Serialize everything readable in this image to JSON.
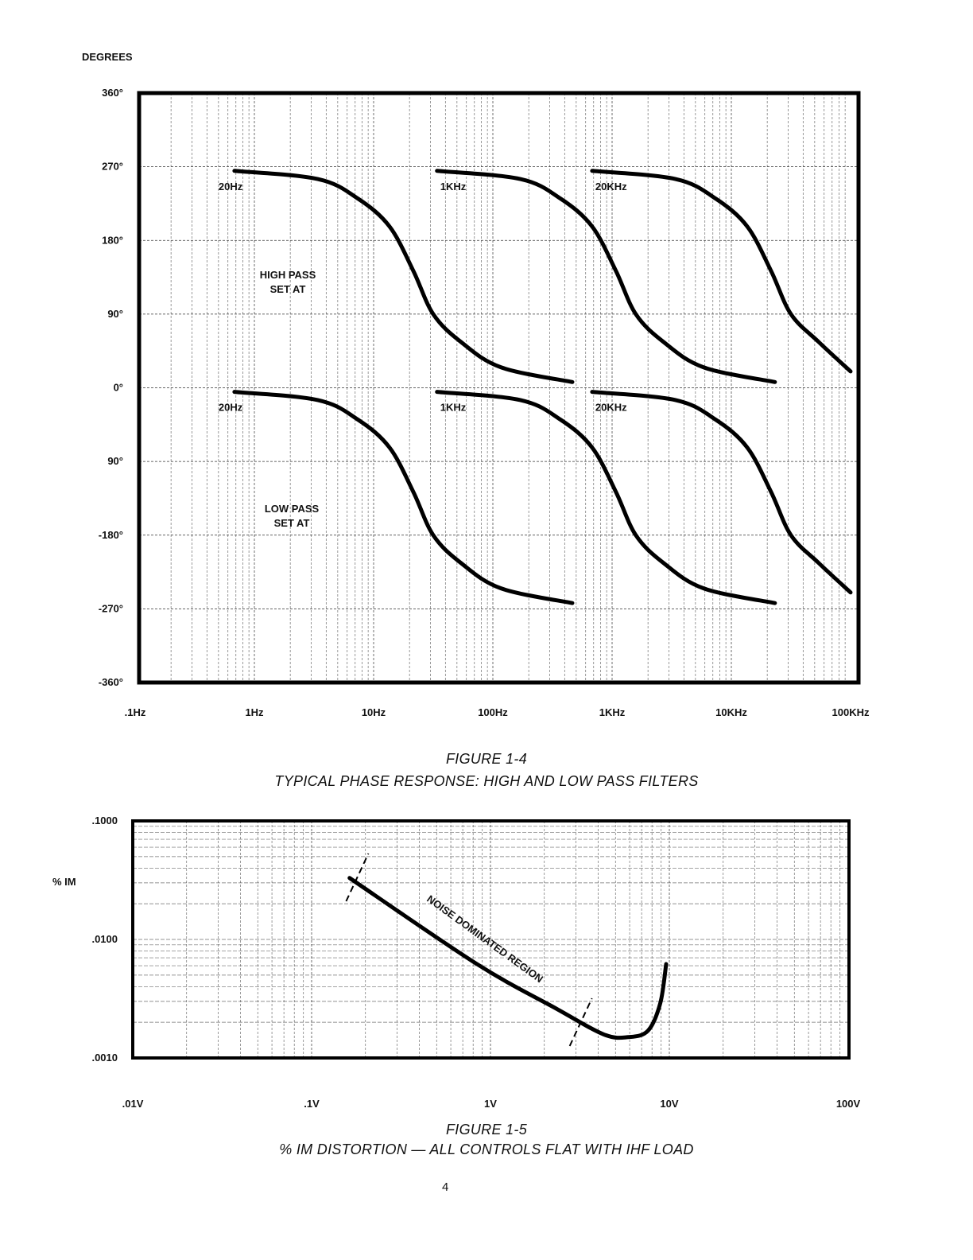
{
  "chart_data": [
    {
      "type": "line",
      "title": "FIGURE 1-4",
      "subtitle": "TYPICAL PHASE RESPONSE: HIGH AND LOW PASS FILTERS",
      "ylabel": "DEGREES",
      "xlabel": "",
      "xscale": "log",
      "xlim": [
        0.1,
        100000
      ],
      "ylim": [
        -360,
        360
      ],
      "grid": true,
      "xticks": [
        {
          "v": 0.1,
          "label": ".1Hz"
        },
        {
          "v": 1,
          "label": "1Hz"
        },
        {
          "v": 10,
          "label": "10Hz"
        },
        {
          "v": 100,
          "label": "100Hz"
        },
        {
          "v": 1000,
          "label": "1KHz"
        },
        {
          "v": 10000,
          "label": "10KHz"
        },
        {
          "v": 100000,
          "label": "100KHz"
        }
      ],
      "yticks": [
        {
          "v": 360,
          "label": "360°"
        },
        {
          "v": 270,
          "label": "270°"
        },
        {
          "v": 180,
          "label": "180°"
        },
        {
          "v": 90,
          "label": "90°"
        },
        {
          "v": 0,
          "label": "0°"
        },
        {
          "v": -90,
          "label": "90°"
        },
        {
          "v": -180,
          "label": "-180°"
        },
        {
          "v": -270,
          "label": "-270°"
        },
        {
          "v": -360,
          "label": "-360°"
        }
      ],
      "annotations": {
        "high_pass": [
          "HIGH PASS",
          "SET AT"
        ],
        "low_pass": [
          "LOW PASS",
          "SET AT"
        ]
      },
      "series": [
        {
          "name": "High pass 20Hz",
          "label": "20Hz",
          "x": [
            0.68,
            3.4,
            7.4,
            13.6,
            21.5,
            31.6,
            54,
            117,
            464
          ],
          "y": [
            265,
            255,
            231,
            197,
            143,
            90,
            56,
            25,
            7
          ]
        },
        {
          "name": "High pass 1KHz",
          "label": "1KHz",
          "x": [
            34,
            170,
            370,
            680,
            1075,
            1580,
            2700,
            5850,
            23200
          ],
          "y": [
            265,
            255,
            231,
            197,
            143,
            90,
            56,
            25,
            7
          ]
        },
        {
          "name": "High pass 20KHz",
          "label": "20KHz",
          "x": [
            680,
            3400,
            7400,
            13600,
            21500,
            31600,
            54000,
            100000
          ],
          "y": [
            265,
            255,
            231,
            197,
            143,
            90,
            56,
            20
          ]
        },
        {
          "name": "Low pass 20Hz",
          "label": "20Hz",
          "x": [
            0.68,
            3.4,
            7.4,
            13.6,
            21.5,
            31.6,
            54,
            117,
            464
          ],
          "y": [
            -5,
            -15,
            -39,
            -73,
            -127,
            -180,
            -214,
            -245,
            -263
          ]
        },
        {
          "name": "Low pass 1KHz",
          "label": "1KHz",
          "x": [
            34,
            170,
            370,
            680,
            1075,
            1580,
            2700,
            5850,
            23200
          ],
          "y": [
            -5,
            -15,
            -39,
            -73,
            -127,
            -180,
            -214,
            -245,
            -263
          ]
        },
        {
          "name": "Low pass 20KHz",
          "label": "20KHz",
          "x": [
            680,
            3400,
            7400,
            13600,
            21500,
            31600,
            54000,
            100000
          ],
          "y": [
            -5,
            -15,
            -39,
            -73,
            -127,
            -180,
            -214,
            -250
          ]
        }
      ]
    },
    {
      "type": "line",
      "title": "FIGURE 1-5",
      "subtitle": "% IM DISTORTION — ALL CONTROLS FLAT WITH IHF LOAD",
      "ylabel": "% IM",
      "xlabel": "",
      "xscale": "log",
      "yscale": "log",
      "xlim": [
        0.01,
        100
      ],
      "ylim": [
        0.001,
        0.1
      ],
      "grid": true,
      "xticks": [
        {
          "v": 0.01,
          "label": ".01V"
        },
        {
          "v": 0.1,
          "label": ".1V"
        },
        {
          "v": 1,
          "label": "1V"
        },
        {
          "v": 10,
          "label": "10V"
        },
        {
          "v": 100,
          "label": "100V"
        }
      ],
      "yticks": [
        {
          "v": 0.1,
          "label": ".1000"
        },
        {
          "v": 0.01,
          "label": ".0100"
        },
        {
          "v": 0.001,
          "label": ".0010"
        }
      ],
      "annotations": {
        "region": "NOISE DOMINATED REGION",
        "region_bounds_v": [
          0.18,
          3.2
        ]
      },
      "series": [
        {
          "name": "% IM",
          "x": [
            0.163,
            0.84,
            2.34,
            4.3,
            5.9,
            7.6,
            8.9,
            9.6
          ],
          "y": [
            0.033,
            0.0062,
            0.0026,
            0.00158,
            0.0015,
            0.0017,
            0.0029,
            0.0062
          ]
        }
      ]
    }
  ],
  "page_number": "4"
}
